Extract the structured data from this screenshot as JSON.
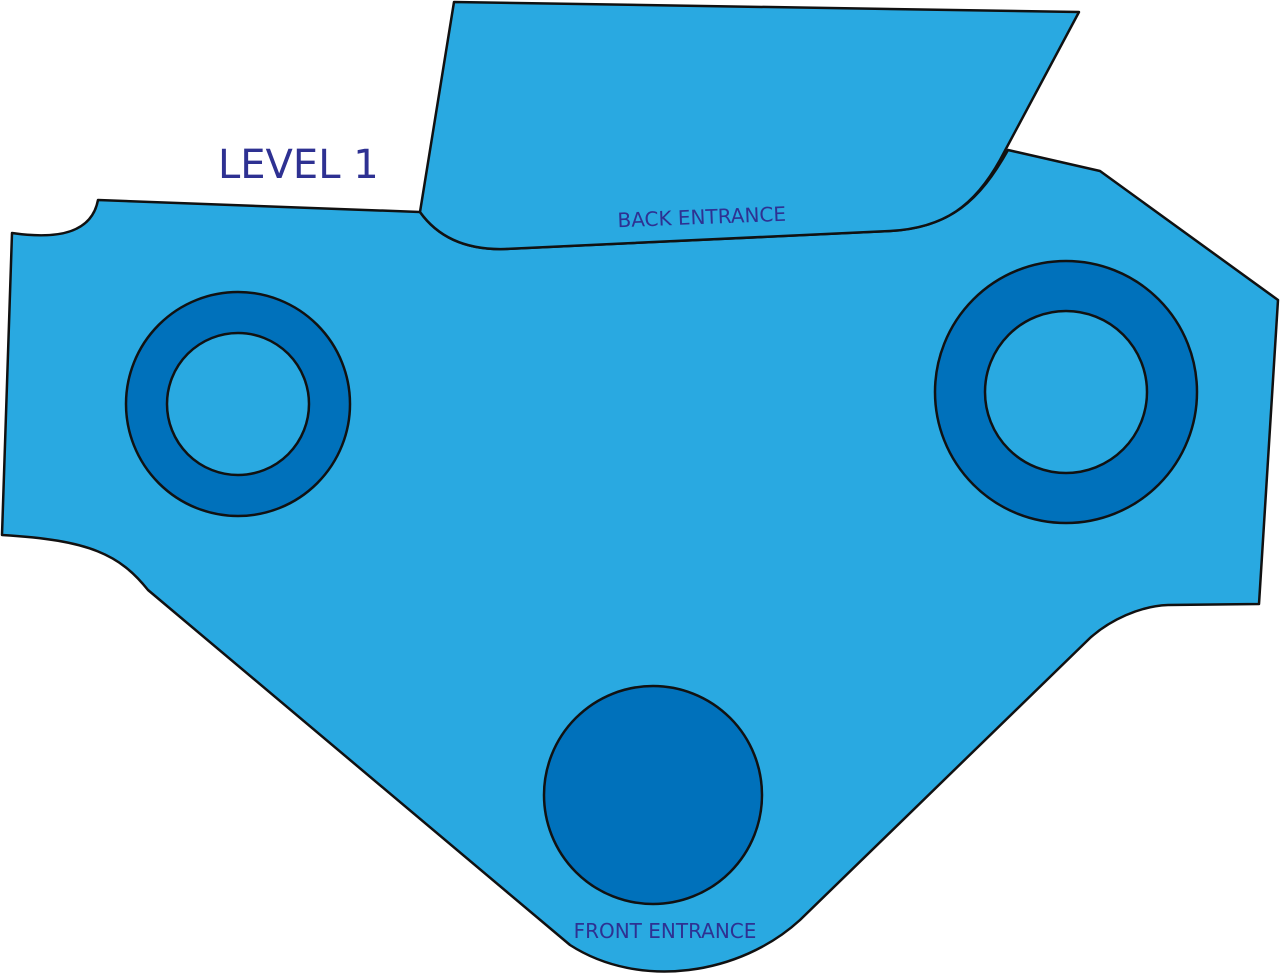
{
  "map": {
    "level_title": "LEVEL 1",
    "back_entrance_label": "BACK ENTRANCE",
    "front_entrance_label": "FRONT ENTRANCE"
  },
  "colors": {
    "floor_fill": "#29a9e1",
    "ring_fill": "#0071bb",
    "outline": "#111111",
    "label_text": "#2e3192"
  }
}
